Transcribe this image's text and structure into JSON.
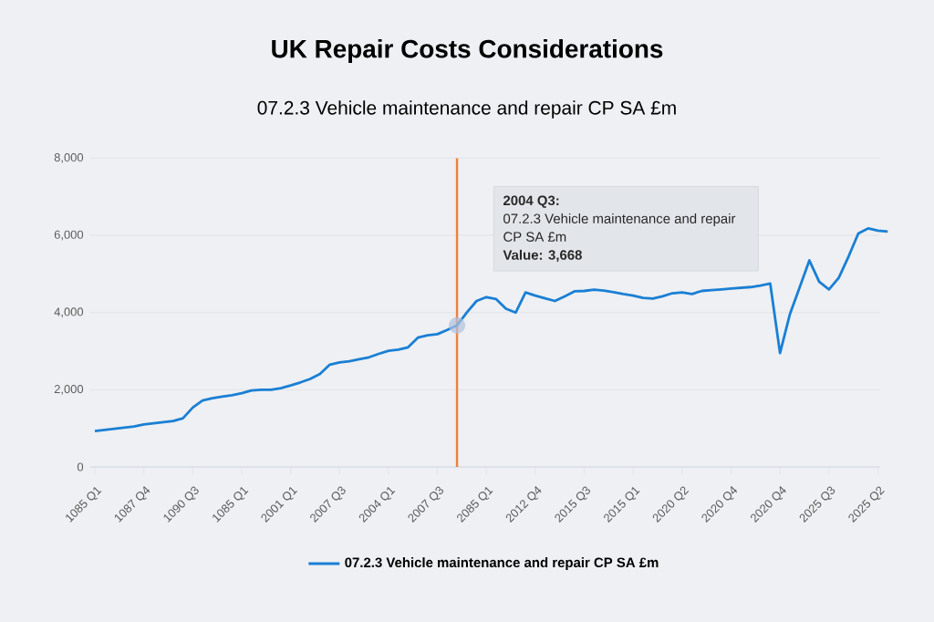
{
  "chart_data": {
    "type": "line",
    "title": "UK Repair Costs Considerations",
    "subtitle": "07.2.3 Vehicle maintenance and repair CP SA £m",
    "categories": [
      "1085 Q1",
      null,
      null,
      null,
      null,
      "1087 Q4",
      null,
      null,
      null,
      null,
      "1090 Q3",
      null,
      null,
      null,
      null,
      "1085 Q1",
      null,
      null,
      null,
      null,
      "2001 Q1",
      null,
      null,
      null,
      null,
      "2007 Q3",
      null,
      null,
      null,
      null,
      "2004 Q1",
      null,
      null,
      null,
      null,
      "2007 Q3",
      null,
      null,
      null,
      null,
      "2085 Q1",
      null,
      null,
      null,
      null,
      "2012 Q4",
      null,
      null,
      null,
      null,
      "2015 Q3",
      null,
      null,
      null,
      null,
      "2015 Q1",
      null,
      null,
      null,
      null,
      "2020 Q2",
      null,
      null,
      null,
      null,
      "2020 Q4",
      null,
      null,
      null,
      null,
      "2020 Q4",
      null,
      null,
      null,
      null,
      "2025 Q3",
      null,
      null,
      null,
      null,
      "2025 Q2",
      null
    ],
    "series": [
      {
        "name": "07.2.3 Vehicle maintenance and repair CP SA £m",
        "color": "#1a7fd4",
        "values": [
          930,
          960,
          990,
          1020,
          1050,
          1100,
          1130,
          1160,
          1190,
          1260,
          1540,
          1720,
          1780,
          1820,
          1860,
          1910,
          1980,
          2000,
          2000,
          2040,
          2110,
          2190,
          2280,
          2410,
          2650,
          2710,
          2740,
          2790,
          2840,
          2930,
          3010,
          3040,
          3100,
          3350,
          3410,
          3440,
          3550,
          3668,
          4000,
          4300,
          4400,
          4350,
          4100,
          4000,
          4520,
          4440,
          4370,
          4300,
          4420,
          4550,
          4560,
          4590,
          4570,
          4530,
          4480,
          4440,
          4380,
          4360,
          4420,
          4500,
          4520,
          4480,
          4560,
          4580,
          4600,
          4620,
          4640,
          4660,
          4700,
          4750,
          2950,
          3950,
          4650,
          5350,
          4800,
          4600,
          4900,
          5450,
          6050,
          6180,
          6120,
          6100
        ]
      }
    ],
    "ylim": [
      0,
      8000
    ],
    "yticks": [
      0,
      {
        "value": 2000,
        "label": "2,000"
      },
      {
        "value": 4000,
        "label": "4,000"
      },
      {
        "value": 6000,
        "label": "6,000"
      },
      {
        "value": 8000,
        "label": "8,000"
      }
    ],
    "grid": "y",
    "legend": "bottom",
    "annotations": [
      "2004 Q3:",
      "07.2.3 Vehicle maintenance and repair CP SA £m",
      "Value: 3,668"
    ]
  }
}
